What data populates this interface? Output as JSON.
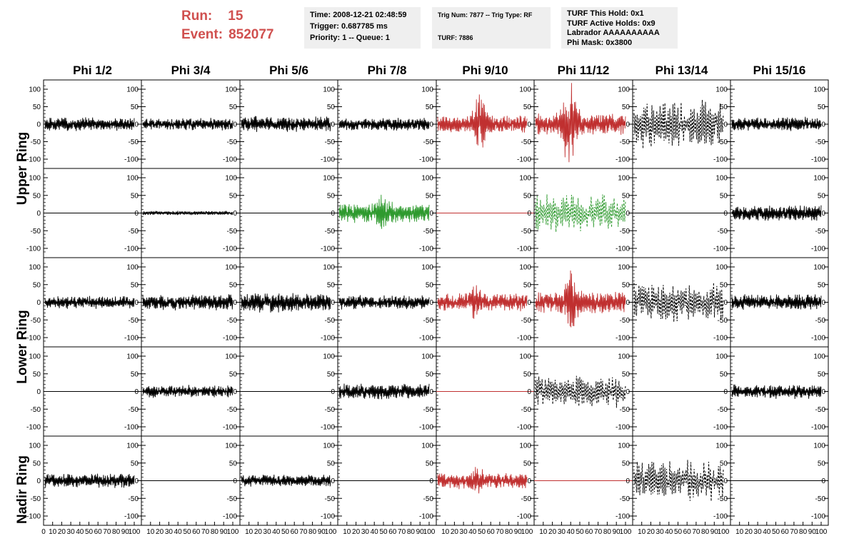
{
  "header": {
    "run_label": "Run:",
    "run_value": "15",
    "event_label": "Event:",
    "event_value": "852077"
  },
  "info_box_1": {
    "time": "Time: 2008-12-21 02:48:59",
    "trigger": "Trigger: 0.687785 ms",
    "priority": "Priority: 1 -- Queue: 1"
  },
  "info_box_2": {
    "trig": "Trig Num: 7877 -- Trig Type: RF",
    "turf": "TURF: 7886"
  },
  "info_box_3": {
    "this_hold": "TURF This Hold: 0x1",
    "active_holds": "TURF Active Holds: 0x9",
    "labrador": "Labrador AAAAAAAAAA",
    "phi_mask": "Phi Mask: 0x3800"
  },
  "colors": {
    "red": "#c03030",
    "green": "#2e9a2e",
    "black": "#000000",
    "info_box_bg": "#efefef",
    "run_text": "#d0504f"
  },
  "chart_data": {
    "type": "line",
    "column_titles": [
      "Phi 1/2",
      "Phi 3/4",
      "Phi 5/6",
      "Phi 7/8",
      "Phi 9/10",
      "Phi 11/12",
      "Phi 13/14",
      "Phi 15/16"
    ],
    "row_titles": [
      "Upper Ring",
      "Lower Ring",
      "Nadir Ring"
    ],
    "ylim": [
      -120,
      120
    ],
    "y_ticks": [
      100,
      50,
      0,
      -50,
      -100
    ],
    "xlim": [
      0,
      100
    ],
    "x_tick_labels": [
      "0",
      "10",
      "20",
      "30",
      "40",
      "50",
      "60",
      "70",
      "80",
      "90",
      "100"
    ],
    "grid": false,
    "panels": [
      [
        {
          "color": "black",
          "style": "solid",
          "amp": 15,
          "seed": 1
        },
        {
          "color": "black",
          "style": "solid",
          "amp": 14,
          "seed": 2
        },
        {
          "color": "black",
          "style": "solid",
          "amp": 18,
          "seed": 3
        },
        {
          "color": "black",
          "style": "solid",
          "amp": 15,
          "seed": 4
        },
        {
          "color": "red",
          "style": "solid",
          "amp": 20,
          "burst": 75,
          "burst_center": 47,
          "seed": 5
        },
        {
          "color": "red",
          "style": "solid",
          "amp": 25,
          "burst": 110,
          "burst_center": 38,
          "seed": 6
        },
        {
          "color": "black",
          "style": "dashed",
          "amp": 55,
          "seed": 7
        },
        {
          "color": "black",
          "style": "solid",
          "amp": 16,
          "seed": 8
        }
      ],
      [
        {
          "color": "black",
          "style": "flat",
          "amp": 0,
          "seed": 9
        },
        {
          "color": "black",
          "style": "solid",
          "amp": 5,
          "seed": 10
        },
        {
          "color": "black",
          "style": "flat",
          "amp": 0,
          "seed": 11
        },
        {
          "color": "green",
          "style": "solid",
          "amp": 22,
          "burst": 45,
          "burst_center": 48,
          "seed": 12
        },
        {
          "color": "red",
          "style": "flat",
          "amp": 0,
          "seed": 13
        },
        {
          "color": "green",
          "style": "dashed",
          "amp": 40,
          "seed": 14
        },
        {
          "color": "black",
          "style": "flat",
          "amp": 0,
          "seed": 15
        },
        {
          "color": "black",
          "style": "solid",
          "amp": 18,
          "seed": 16
        }
      ],
      [
        {
          "color": "black",
          "style": "solid",
          "amp": 14,
          "seed": 17
        },
        {
          "color": "black",
          "style": "solid",
          "amp": 18,
          "seed": 18
        },
        {
          "color": "black",
          "style": "solid",
          "amp": 22,
          "seed": 19
        },
        {
          "color": "black",
          "style": "solid",
          "amp": 16,
          "seed": 20
        },
        {
          "color": "red",
          "style": "solid",
          "amp": 20,
          "burst": 45,
          "burst_center": 42,
          "seed": 21
        },
        {
          "color": "red",
          "style": "solid",
          "amp": 25,
          "burst": 80,
          "burst_center": 40,
          "seed": 22
        },
        {
          "color": "black",
          "style": "dashed",
          "amp": 45,
          "seed": 23
        },
        {
          "color": "black",
          "style": "solid",
          "amp": 18,
          "seed": 24
        }
      ],
      [
        {
          "color": "black",
          "style": "flat",
          "amp": 0,
          "seed": 25
        },
        {
          "color": "black",
          "style": "solid",
          "amp": 14,
          "seed": 26
        },
        {
          "color": "black",
          "style": "flat",
          "amp": 0,
          "seed": 27
        },
        {
          "color": "black",
          "style": "solid",
          "amp": 18,
          "seed": 28
        },
        {
          "color": "red",
          "style": "flat",
          "amp": 0,
          "seed": 29
        },
        {
          "color": "black",
          "style": "dashed",
          "amp": 35,
          "seed": 30
        },
        {
          "color": "black",
          "style": "flat",
          "amp": 0,
          "seed": 31
        },
        {
          "color": "black",
          "style": "solid",
          "amp": 16,
          "seed": 32
        }
      ],
      [
        {
          "color": "black",
          "style": "solid",
          "amp": 16,
          "seed": 33
        },
        {
          "color": "black",
          "style": "flat",
          "amp": 0,
          "seed": 34
        },
        {
          "color": "black",
          "style": "solid",
          "amp": 14,
          "seed": 35
        },
        {
          "color": "black",
          "style": "flat",
          "amp": 0,
          "seed": 36
        },
        {
          "color": "red",
          "style": "solid",
          "amp": 18,
          "burst": 40,
          "burst_center": 45,
          "seed": 37
        },
        {
          "color": "red",
          "style": "flat",
          "amp": 0,
          "seed": 38
        },
        {
          "color": "black",
          "style": "dashed",
          "amp": 45,
          "seed": 39
        },
        {
          "color": "black",
          "style": "flat",
          "amp": 0,
          "seed": 40
        }
      ]
    ]
  }
}
